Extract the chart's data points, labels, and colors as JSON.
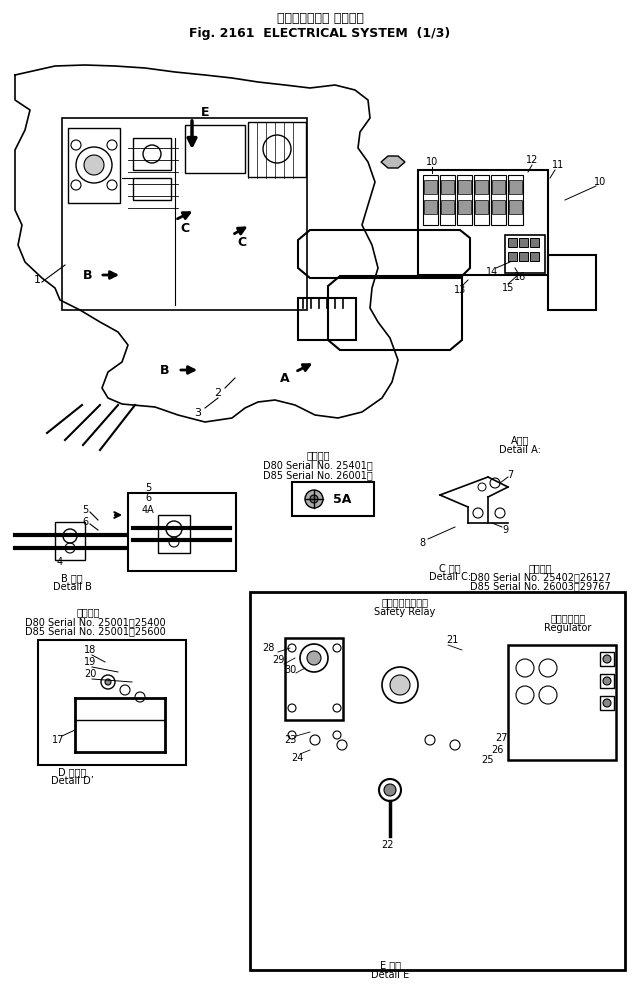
{
  "title_jp": "エレクトリカル システム",
  "title_en": "Fig. 2161  ELECTRICAL SYSTEM  (1/3)",
  "bg_color": "#ffffff",
  "line_color": "#000000",
  "text_color": "#000000",
  "fig_width": 6.4,
  "fig_height": 9.98,
  "serial_5A": "5A",
  "detail_a_text_jp": "A詳細",
  "detail_a_text_en": "Detail A:",
  "detail_b_text_jp": "B 詳細",
  "detail_b_text_en": "Detail B",
  "detail_c_text_jp": "C 詳細",
  "detail_c_text_en": "Detail C:",
  "detail_d_text_jp": "D 詳細ｩ",
  "detail_d_text_en": "Detail D’",
  "detail_e_text_jp": "E 詳細",
  "detail_e_text_en": "Detail E",
  "serial_main_jp": "適用号機",
  "serial_main_line1": "D80 Serial No. 25401～",
  "serial_main_line2": "D85 Serial No. 26001～",
  "serial_d_jp": "適用号機",
  "serial_d_line1": "D80 Serial No. 25001～25400",
  "serial_d_line2": "D85 Serial No. 25001～25600",
  "serial_c_jp": "適用号機",
  "serial_c_line1": "D80 Serial No. 25402～26127",
  "serial_c_line2": "D85 Serial No. 26003～29767",
  "safety_relay_jp": "セーフティリレー",
  "safety_relay_en": "Safety Relay",
  "regulator_jp": "レギュレータ",
  "regulator_en": "Regulator"
}
